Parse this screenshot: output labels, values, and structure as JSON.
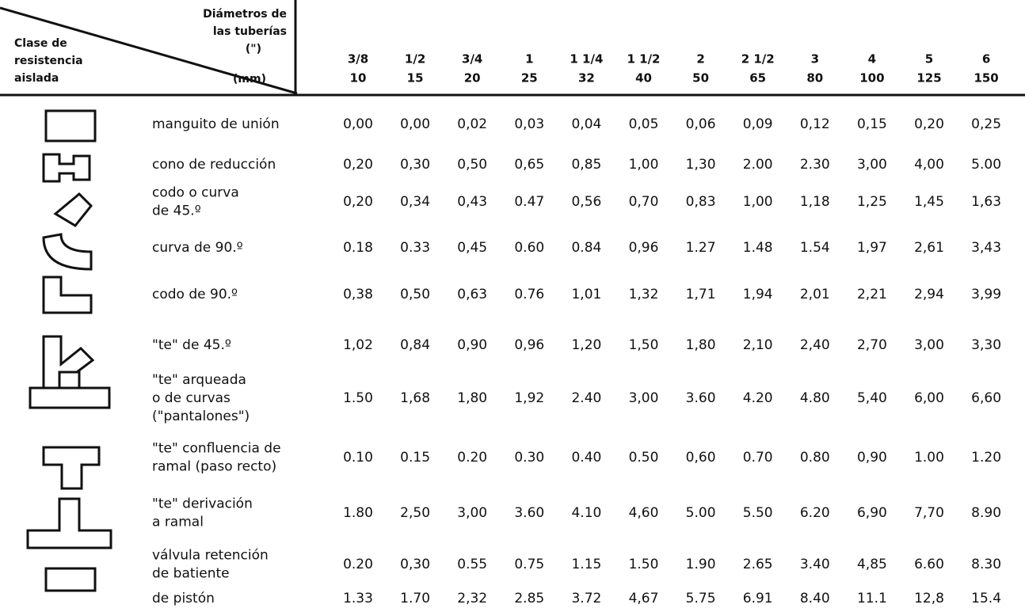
{
  "header": {
    "corner_left": [
      "Clase de",
      "resistencia",
      "aislada"
    ],
    "corner_right": [
      "Diámetros de",
      "las tuberías",
      "(\")",
      "(mm)"
    ],
    "columns": [
      {
        "inch": "3/8",
        "mm": "10"
      },
      {
        "inch": "1/2",
        "mm": "15"
      },
      {
        "inch": "3/4",
        "mm": "20"
      },
      {
        "inch": "1",
        "mm": "25"
      },
      {
        "inch": "1 1/4",
        "mm": "32"
      },
      {
        "inch": "1 1/2",
        "mm": "40"
      },
      {
        "inch": "2",
        "mm": "50"
      },
      {
        "inch": "2 1/2",
        "mm": "65"
      },
      {
        "inch": "3",
        "mm": "80"
      },
      {
        "inch": "4",
        "mm": "100"
      },
      {
        "inch": "5",
        "mm": "125"
      },
      {
        "inch": "6",
        "mm": "150"
      }
    ]
  },
  "rows": [
    {
      "label": [
        "manguito de unión"
      ],
      "values": [
        "0,00",
        "0,00",
        "0,02",
        "0,03",
        "0,04",
        "0,05",
        "0,06",
        "0,09",
        "0,12",
        "0,15",
        "0,20",
        "0,25"
      ]
    },
    {
      "label": [
        "cono de reducción"
      ],
      "values": [
        "0,20",
        "0,30",
        "0,50",
        "0,65",
        "0,85",
        "1,00",
        "1,30",
        "2.00",
        "2.30",
        "3,00",
        "4,00",
        "5.00"
      ]
    },
    {
      "label": [
        "codo o curva",
        "de 45.º"
      ],
      "values": [
        "0,20",
        "0,34",
        "0,43",
        "0.47",
        "0,56",
        "0,70",
        "0,83",
        "1,00",
        "1,18",
        "1,25",
        "1,45",
        "1,63"
      ]
    },
    {
      "label": [
        "curva de 90.º"
      ],
      "values": [
        "0.18",
        "0.33",
        "0,45",
        "0.60",
        "0.84",
        "0,96",
        "1.27",
        "1.48",
        "1.54",
        "1,97",
        "2,61",
        "3,43"
      ]
    },
    {
      "label": [
        "codo de 90.º"
      ],
      "values": [
        "0,38",
        "0,50",
        "0,63",
        "0.76",
        "1,01",
        "1,32",
        "1,71",
        "1,94",
        "2,01",
        "2,21",
        "2,94",
        "3,99"
      ]
    },
    {
      "label": [
        "\"te\" de 45.º"
      ],
      "values": [
        "1,02",
        "0,84",
        "0,90",
        "0,96",
        "1,20",
        "1,50",
        "1,80",
        "2,10",
        "2,40",
        "2,70",
        "3,00",
        "3,30"
      ]
    },
    {
      "label": [
        "\"te\" arqueada",
        "o de curvas",
        "(\"pantalones\")"
      ],
      "values": [
        "1.50",
        "1,68",
        "1,80",
        "1,92",
        "2.40",
        "3,00",
        "3.60",
        "4.20",
        "4.80",
        "5,40",
        "6,00",
        "6,60"
      ]
    },
    {
      "label": [
        "\"te\" confluencia de",
        "ramal (paso recto)"
      ],
      "values": [
        "0.10",
        "0.15",
        "0.20",
        "0.30",
        "0.40",
        "0.50",
        "0,60",
        "0.70",
        "0.80",
        "0,90",
        "1.00",
        "1.20"
      ]
    },
    {
      "label": [
        "\"te\" derivación",
        "a ramal"
      ],
      "values": [
        "1.80",
        "2,50",
        "3,00",
        "3.60",
        "4.10",
        "4,60",
        "5.00",
        "5.50",
        "6.20",
        "6,90",
        "7,70",
        "8.90"
      ]
    },
    {
      "label": [
        "válvula retención",
        "de batiente"
      ],
      "values": [
        "0.20",
        "0,30",
        "0.55",
        "0.75",
        "1.15",
        "1.50",
        "1.90",
        "2.65",
        "3.40",
        "4,85",
        "6.60",
        "8.30"
      ]
    },
    {
      "label": [
        "de pistón"
      ],
      "values": [
        "1.33",
        "1.70",
        "2,32",
        "2.85",
        "3.72",
        "4,67",
        "5.75",
        "6.91",
        "8.40",
        "11.1",
        "12,8",
        "15.4"
      ]
    }
  ]
}
